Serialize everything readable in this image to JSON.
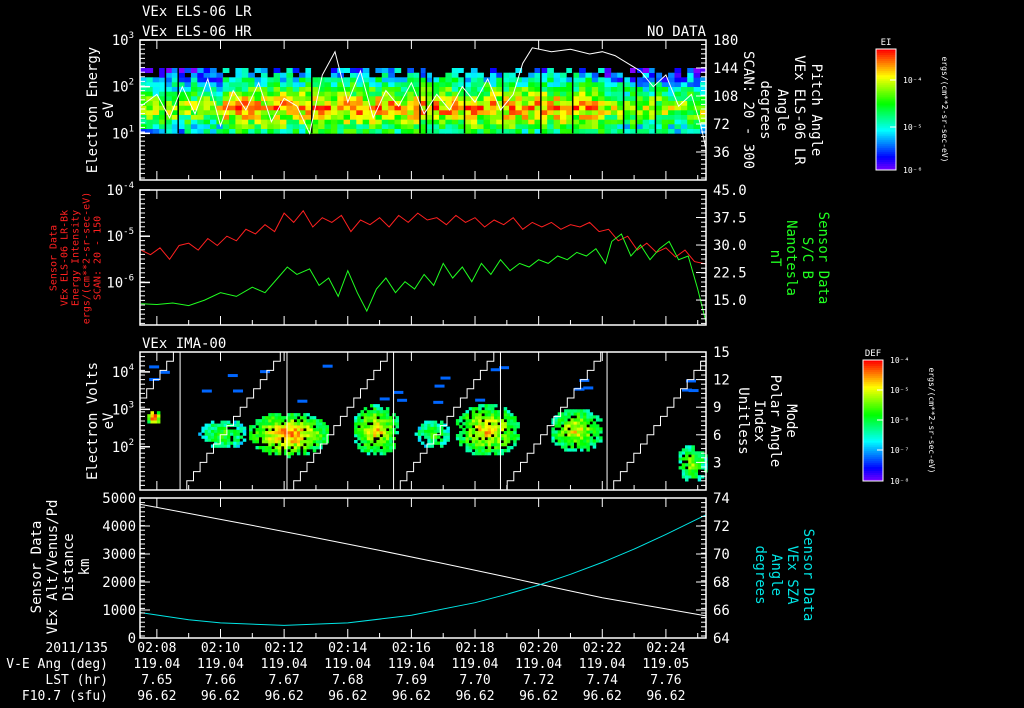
{
  "header": {
    "title_lr": "VEx ELS-06 LR",
    "title_hr": "VEx ELS-06 HR",
    "no_data": "NO DATA",
    "ima_title": "VEx IMA-00"
  },
  "colors": {
    "background": "#000000",
    "axis": "#ffffff",
    "red_series": "#ff2020",
    "green_series": "#20ff20",
    "cyan_series": "#00e5e5"
  },
  "chart_data": [
    {
      "id": "els-spectrogram",
      "type": "heatmap",
      "ylabel": [
        "Electron Energy",
        "eV"
      ],
      "y_scale": "log",
      "ylim": [
        1,
        1000
      ],
      "y_ticks": [
        {
          "base": "10",
          "exp": "3",
          "v": 1000
        },
        {
          "base": "10",
          "exp": "2",
          "v": 100
        },
        {
          "base": "10",
          "exp": "1",
          "v": 10
        }
      ],
      "energy_range": [
        10,
        250
      ],
      "peak_energy": 35,
      "y2label": [
        "Pitch Angle",
        "VEx ELS-06 LR",
        "Angle",
        "degrees",
        "SCAN: 20 - 300"
      ],
      "y2lim": [
        0,
        180
      ],
      "y2_ticks": [
        "180",
        "144",
        "108",
        "72",
        "36"
      ],
      "y2_tick_values": [
        180,
        144,
        108,
        72,
        36
      ],
      "pitch_angle": [
        [
          7.5,
          95
        ],
        [
          8,
          110
        ],
        [
          8.4,
          80
        ],
        [
          8.8,
          120
        ],
        [
          9.2,
          85
        ],
        [
          9.6,
          130
        ],
        [
          10,
          70
        ],
        [
          10.4,
          115
        ],
        [
          10.8,
          90
        ],
        [
          11.2,
          125
        ],
        [
          11.6,
          75
        ],
        [
          12,
          105
        ],
        [
          12.4,
          95
        ],
        [
          12.8,
          60
        ],
        [
          13.2,
          135
        ],
        [
          13.6,
          165
        ],
        [
          14,
          100
        ],
        [
          14.4,
          140
        ],
        [
          14.8,
          80
        ],
        [
          15.2,
          115
        ],
        [
          15.6,
          95
        ],
        [
          16,
          125
        ],
        [
          16.4,
          85
        ],
        [
          16.8,
          110
        ],
        [
          17.2,
          90
        ],
        [
          17.6,
          120
        ],
        [
          18,
          100
        ],
        [
          18.4,
          130
        ],
        [
          18.8,
          90
        ],
        [
          19.2,
          110
        ],
        [
          19.5,
          150
        ],
        [
          19.8,
          170
        ],
        [
          20.4,
          165
        ],
        [
          21,
          168
        ],
        [
          21.6,
          162
        ],
        [
          22,
          165
        ],
        [
          22.4,
          160
        ],
        [
          22.8,
          150
        ],
        [
          23.2,
          140
        ],
        [
          23.6,
          120
        ],
        [
          24,
          135
        ],
        [
          24.4,
          95
        ],
        [
          24.8,
          110
        ],
        [
          25.1,
          70
        ],
        [
          25.26,
          40
        ]
      ],
      "colorbar": {
        "label": "EI",
        "ticks": [
          "10⁻⁴",
          "10⁻⁵",
          "10⁻⁶"
        ],
        "units": "ergs/(cm**2-sr-sec-eV)"
      }
    },
    {
      "id": "sensor-intensity-bfield",
      "type": "line",
      "ylabel": [
        "Sensor Data",
        "VEx ELS-06 LR-Bk",
        "Energy Intensity",
        "ergs/(cm**2-sr-sec-eV)",
        "SCAN: 20 - 150"
      ],
      "y_scale": "log",
      "ylim": [
        1.2e-07,
        0.0001
      ],
      "y_ticks": [
        {
          "base": "10",
          "exp": "-4",
          "v": 0.0001
        },
        {
          "base": "10",
          "exp": "-5",
          "v": 1e-05
        },
        {
          "base": "10",
          "exp": "-6",
          "v": 1e-06
        }
      ],
      "y2label": [
        "Sensor Data",
        "S/C B",
        "Nanotesla",
        "nT"
      ],
      "y2lim": [
        8.2,
        45
      ],
      "y2_ticks": [
        "45.0",
        "37.5",
        "30.0",
        "22.5",
        "15.0"
      ],
      "y2_tick_values": [
        45,
        37.5,
        30,
        22.5,
        15
      ],
      "series": [
        {
          "name": "Energy Intensity",
          "axis": "left",
          "color": "#ff2020",
          "log10_values": [
            [
              7.5,
              -5.3
            ],
            [
              7.8,
              -5.4
            ],
            [
              8.1,
              -5.25
            ],
            [
              8.4,
              -5.5
            ],
            [
              8.7,
              -5.2
            ],
            [
              9,
              -5.15
            ],
            [
              9.3,
              -5.3
            ],
            [
              9.6,
              -5.05
            ],
            [
              9.9,
              -5.2
            ],
            [
              10.2,
              -5.0
            ],
            [
              10.5,
              -5.1
            ],
            [
              10.8,
              -4.85
            ],
            [
              11.1,
              -4.95
            ],
            [
              11.4,
              -4.75
            ],
            [
              11.7,
              -4.9
            ],
            [
              12,
              -4.5
            ],
            [
              12.3,
              -4.7
            ],
            [
              12.6,
              -4.45
            ],
            [
              12.9,
              -4.8
            ],
            [
              13.2,
              -4.6
            ],
            [
              13.5,
              -4.7
            ],
            [
              13.8,
              -4.55
            ],
            [
              14.1,
              -4.9
            ],
            [
              14.4,
              -4.65
            ],
            [
              14.7,
              -4.75
            ],
            [
              15,
              -4.6
            ],
            [
              15.3,
              -4.8
            ],
            [
              15.6,
              -4.55
            ],
            [
              15.9,
              -4.7
            ],
            [
              16.2,
              -4.5
            ],
            [
              16.5,
              -4.65
            ],
            [
              16.8,
              -4.6
            ],
            [
              17.1,
              -4.75
            ],
            [
              17.4,
              -4.55
            ],
            [
              17.7,
              -4.7
            ],
            [
              18,
              -4.6
            ],
            [
              18.3,
              -4.8
            ],
            [
              18.6,
              -4.65
            ],
            [
              18.9,
              -4.75
            ],
            [
              19.2,
              -4.6
            ],
            [
              19.5,
              -4.85
            ],
            [
              19.8,
              -4.7
            ],
            [
              20.1,
              -4.8
            ],
            [
              20.4,
              -4.7
            ],
            [
              20.7,
              -4.85
            ],
            [
              21,
              -4.75
            ],
            [
              21.3,
              -4.8
            ],
            [
              21.6,
              -4.7
            ],
            [
              21.9,
              -4.9
            ],
            [
              22.2,
              -4.85
            ],
            [
              22.5,
              -5.1
            ],
            [
              22.8,
              -5.0
            ],
            [
              23.1,
              -5.3
            ],
            [
              23.4,
              -5.15
            ],
            [
              23.7,
              -5.35
            ],
            [
              24,
              -5.25
            ],
            [
              24.3,
              -5.45
            ],
            [
              24.6,
              -5.3
            ],
            [
              24.9,
              -5.55
            ],
            [
              25.26,
              -5.6
            ]
          ]
        },
        {
          "name": "S/C B",
          "axis": "right",
          "color": "#20ff20",
          "values": [
            [
              7.5,
              14
            ],
            [
              8,
              13.8
            ],
            [
              8.5,
              14.2
            ],
            [
              9,
              13.5
            ],
            [
              9.5,
              15
            ],
            [
              10,
              17
            ],
            [
              10.5,
              16
            ],
            [
              11,
              18.5
            ],
            [
              11.4,
              17
            ],
            [
              11.8,
              21
            ],
            [
              12.1,
              24
            ],
            [
              12.4,
              22
            ],
            [
              12.8,
              23.5
            ],
            [
              13.1,
              19
            ],
            [
              13.4,
              21
            ],
            [
              13.7,
              16
            ],
            [
              14,
              23
            ],
            [
              14.3,
              17
            ],
            [
              14.6,
              12
            ],
            [
              14.9,
              18
            ],
            [
              15.2,
              21
            ],
            [
              15.5,
              17
            ],
            [
              15.8,
              20
            ],
            [
              16.1,
              18
            ],
            [
              16.4,
              22
            ],
            [
              16.7,
              19
            ],
            [
              17,
              25
            ],
            [
              17.3,
              21
            ],
            [
              17.6,
              24
            ],
            [
              17.9,
              20
            ],
            [
              18.2,
              25
            ],
            [
              18.5,
              22
            ],
            [
              18.8,
              26
            ],
            [
              19.1,
              23
            ],
            [
              19.4,
              25
            ],
            [
              19.7,
              24
            ],
            [
              20,
              26
            ],
            [
              20.3,
              25
            ],
            [
              20.6,
              27
            ],
            [
              20.9,
              26
            ],
            [
              21.2,
              28
            ],
            [
              21.5,
              27
            ],
            [
              21.8,
              29
            ],
            [
              22.1,
              25
            ],
            [
              22.3,
              31
            ],
            [
              22.6,
              33
            ],
            [
              22.9,
              27
            ],
            [
              23.2,
              30
            ],
            [
              23.5,
              26
            ],
            [
              23.8,
              29
            ],
            [
              24.1,
              31
            ],
            [
              24.4,
              26
            ],
            [
              24.7,
              27
            ],
            [
              25,
              18
            ],
            [
              25.26,
              9
            ]
          ]
        }
      ]
    },
    {
      "id": "ima-spectrogram",
      "type": "heatmap",
      "title": "VEx IMA-00",
      "ylabel": [
        "Electron Volts",
        "eV"
      ],
      "y_scale": "log",
      "ylim": [
        7,
        34000
      ],
      "y_ticks": [
        {
          "base": "10",
          "exp": "4",
          "v": 10000
        },
        {
          "base": "10",
          "exp": "3",
          "v": 1000
        },
        {
          "base": "10",
          "exp": "2",
          "v": 100
        }
      ],
      "y2label": [
        "Mode",
        "Polar Angle",
        "Index",
        "Unitless"
      ],
      "y2lim": [
        0,
        15
      ],
      "y2_ticks": [
        "15",
        "12",
        "9",
        "6",
        "3"
      ],
      "y2_tick_values": [
        15,
        12,
        9,
        6,
        3
      ],
      "polar_angle_cycle_starts": [
        8.73,
        12.09,
        15.44,
        18.8,
        22.15
      ],
      "polar_angle_period_min": 3.36,
      "clusters": [
        {
          "t": [
            7.6,
            8.1
          ],
          "log_e": [
            2.55,
            2.95
          ],
          "level": 0.8
        },
        {
          "t": [
            9.3,
            10.8
          ],
          "log_e": [
            1.9,
            2.7
          ],
          "level": 0.35
        },
        {
          "t": [
            10.8,
            13.4
          ],
          "log_e": [
            1.7,
            2.9
          ],
          "level": 0.7
        },
        {
          "t": [
            14.1,
            15.6
          ],
          "log_e": [
            1.7,
            3.1
          ],
          "level": 0.6
        },
        {
          "t": [
            16.1,
            17.2
          ],
          "log_e": [
            1.9,
            2.7
          ],
          "level": 0.35
        },
        {
          "t": [
            17.3,
            19.4
          ],
          "log_e": [
            1.7,
            3.1
          ],
          "level": 0.62
        },
        {
          "t": [
            20.3,
            22.0
          ],
          "log_e": [
            1.8,
            3.0
          ],
          "level": 0.55
        },
        {
          "t": [
            24.3,
            25.26
          ],
          "log_e": [
            1.0,
            2.0
          ],
          "level": 0.45
        }
      ],
      "colorbar": {
        "label": "DEF",
        "ticks": [
          "10⁻⁴",
          "10⁻⁵",
          "10⁻⁶",
          "10⁻⁷",
          "10⁻⁸"
        ],
        "units": "ergs/(cm**2-sr-sec-eV)"
      }
    },
    {
      "id": "altitude-sza",
      "type": "line",
      "ylabel": [
        "Sensor Data",
        "VEx Alt/Venus/Pd",
        "Distance",
        "km"
      ],
      "ylim": [
        0,
        5000
      ],
      "y_ticks": [
        "5000",
        "4000",
        "3000",
        "2000",
        "1000",
        "0"
      ],
      "y_tick_values": [
        5000,
        4000,
        3000,
        2000,
        1000,
        0
      ],
      "y2label": [
        "Sensor Data",
        "VEx SZA",
        "Angle",
        "degrees"
      ],
      "y2lim": [
        64,
        74
      ],
      "y2_ticks": [
        "74",
        "72",
        "70",
        "68",
        "66",
        "64"
      ],
      "y2_tick_values": [
        74,
        72,
        70,
        68,
        66,
        64
      ],
      "series": [
        {
          "name": "Altitude",
          "axis": "left",
          "color": "#ffffff",
          "values": [
            [
              7.47,
              4780
            ],
            [
              9,
              4450
            ],
            [
              11,
              4020
            ],
            [
              13,
              3580
            ],
            [
              15,
              3130
            ],
            [
              17,
              2660
            ],
            [
              19,
              2180
            ],
            [
              20.6,
              1780
            ],
            [
              22,
              1440
            ],
            [
              24,
              1040
            ],
            [
              25.26,
              790
            ]
          ]
        },
        {
          "name": "SZA",
          "axis": "right",
          "color": "#00e5e5",
          "values": [
            [
              7.47,
              65.82
            ],
            [
              9,
              65.3
            ],
            [
              10,
              65.08
            ],
            [
              12,
              64.9
            ],
            [
              14,
              65.08
            ],
            [
              16,
              65.62
            ],
            [
              18,
              66.52
            ],
            [
              19,
              67.12
            ],
            [
              20,
              67.78
            ],
            [
              21,
              68.55
            ],
            [
              22,
              69.4
            ],
            [
              23,
              70.35
            ],
            [
              24,
              71.4
            ],
            [
              25.26,
              72.8
            ]
          ]
        }
      ]
    }
  ],
  "time_axis": {
    "range_min": [
      7.47,
      25.26
    ],
    "row_labels": [
      "2011/135",
      "V-E Ang (deg)",
      "LST (hr)",
      "F10.7 (sfu)"
    ],
    "ticks": [
      "02:08",
      "02:10",
      "02:12",
      "02:14",
      "02:16",
      "02:18",
      "02:20",
      "02:22",
      "02:24"
    ],
    "tick_values": [
      8,
      10,
      12,
      14,
      16,
      18,
      20,
      22,
      24
    ],
    "ve_ang": [
      "119.04",
      "119.04",
      "119.04",
      "119.04",
      "119.04",
      "119.04",
      "119.04",
      "119.04",
      "119.05"
    ],
    "lst": [
      "7.65",
      "7.66",
      "7.67",
      "7.68",
      "7.69",
      "7.70",
      "7.72",
      "7.74",
      "7.76"
    ],
    "f107": [
      "96.62",
      "96.62",
      "96.62",
      "96.62",
      "96.62",
      "96.62",
      "96.62",
      "96.62",
      "96.62"
    ]
  }
}
